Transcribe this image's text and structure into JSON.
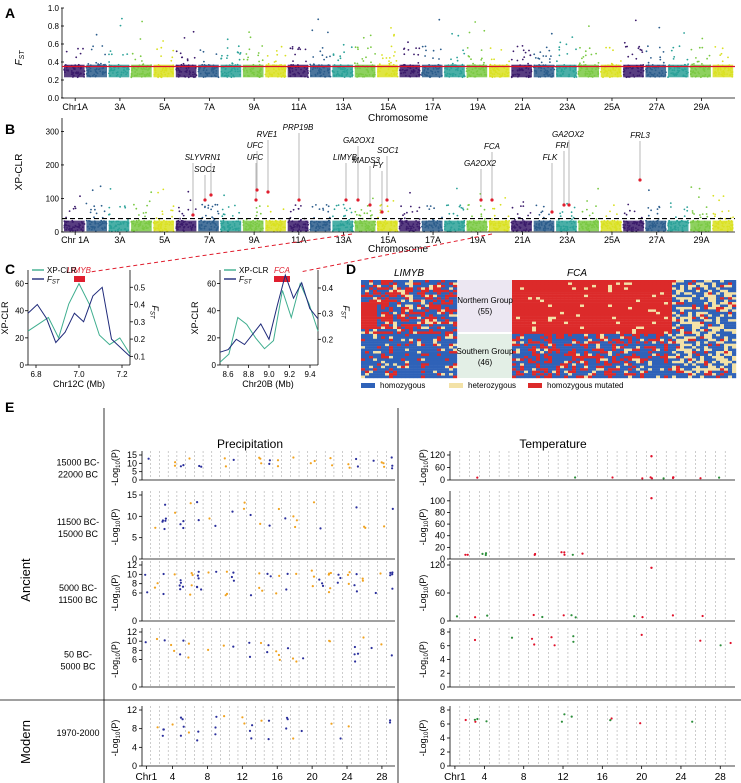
{
  "panels": {
    "A": {
      "letter": "A",
      "ylabel": "F",
      "ylabel_sub": "ST",
      "xlabel": "Chromosome",
      "yticks": [
        "0.0",
        "0.2",
        "0.4",
        "0.6",
        "0.8",
        "1.0"
      ],
      "xticks": [
        "Chr1A",
        "3A",
        "5A",
        "7A",
        "9A",
        "11A",
        "13A",
        "15A",
        "17A",
        "19A",
        "21A",
        "23A",
        "25A",
        "27A",
        "29A"
      ],
      "threshold": 0.35,
      "ylim": [
        0,
        1.0
      ]
    },
    "B": {
      "letter": "B",
      "ylabel": "XP-CLR",
      "xlabel": "Chromosome",
      "yticks": [
        "0",
        "100",
        "200",
        "300"
      ],
      "xticks": [
        "Chr  1A",
        "3A",
        "5A",
        "7A",
        "9A",
        "11A",
        "13A",
        "15A",
        "17A",
        "19A",
        "21A",
        "23A",
        "25A",
        "27A",
        "29A"
      ],
      "threshold": 40,
      "ylim": [
        0,
        340
      ],
      "genes": [
        "SLY",
        "SOC1",
        "VRN1",
        "UFC",
        "UFC",
        "RVE1",
        "PRP19B",
        "LIMYB",
        "GA2OX1",
        "SOC1",
        "MADS3",
        "FY",
        "FCA",
        "GA2OX2",
        "GA2OX2",
        "FLK",
        "FRI",
        "FRL3"
      ]
    },
    "C": {
      "letter": "C",
      "left": {
        "legend": [
          "XP-CLR",
          "F"
        ],
        "legend_sub": "ST",
        "gene": "LIMYB",
        "ylabel_left": "XP-CLR",
        "ylabel_right": "F",
        "ylabel_right_sub": "ST",
        "xlabel": "Chr12C (Mb)",
        "yticks_left": [
          "0",
          "20",
          "40",
          "60"
        ],
        "yticks_right": [
          "0.1",
          "0.2",
          "0.3",
          "0.4",
          "0.5"
        ],
        "xticks": [
          "6.8",
          "7.0",
          "7.2"
        ]
      },
      "right": {
        "legend": [
          "XP-CLR",
          "F"
        ],
        "legend_sub": "ST",
        "gene": "FCA",
        "ylabel_left": "XP-CLR",
        "ylabel_right": "F",
        "ylabel_right_sub": "ST",
        "xlabel": "Chr20B (Mb)",
        "yticks_left": [
          "0",
          "20",
          "40",
          "60"
        ],
        "yticks_right": [
          "0.2",
          "0.3",
          "0.4"
        ],
        "xticks": [
          "8.6",
          "8.8",
          "9.0",
          "9.2",
          "9.4"
        ]
      }
    },
    "D": {
      "letter": "D",
      "gene_left": "LIMYB",
      "gene_right": "FCA",
      "north_label": "Northern Group",
      "north_n": "(55)",
      "south_label": "Southern Group",
      "south_n": "(46)",
      "legend": [
        {
          "label": "homozygous",
          "color": "#2f62b8"
        },
        {
          "label": "heterozygous",
          "color": "#f3e2a7"
        },
        {
          "label": "homozygous mutated",
          "color": "#dc2a2a"
        }
      ]
    },
    "E": {
      "letter": "E",
      "col_headers": [
        "Precipitation",
        "Temperature"
      ],
      "group_ancient": "Ancient",
      "group_modern": "Modern",
      "ylabel": "-Log",
      "ylabel_sub": "10",
      "ylabel_tail": "(P)",
      "rows": [
        {
          "label1": "15000 BC-",
          "label2": "22000 BC",
          "precip_ticks": [
            "0",
            "5",
            "10",
            "15"
          ],
          "temp_ticks": [
            "0",
            "60",
            "120"
          ]
        },
        {
          "label1": "11500 BC-",
          "label2": "15000 BC",
          "precip_ticks": [
            "0",
            "5",
            "10",
            "15"
          ],
          "temp_ticks": [
            "0",
            "20",
            "40",
            "60",
            "80",
            "100"
          ]
        },
        {
          "label1": "5000 BC-",
          "label2": "11500 BC",
          "precip_ticks": [
            "0",
            "6",
            "8",
            "10",
            "12"
          ],
          "temp_ticks": [
            "0",
            "60",
            "120"
          ]
        },
        {
          "label1": "50 BC-",
          "label2": "5000 BC",
          "precip_ticks": [
            "0",
            "6",
            "8",
            "10",
            "12"
          ],
          "temp_ticks": [
            "0",
            "2",
            "4",
            "6",
            "8"
          ]
        },
        {
          "label1": "1970-2000",
          "label2": "",
          "precip_ticks": [
            "0",
            "4",
            "8",
            "12"
          ],
          "temp_ticks": [
            "0",
            "2",
            "4",
            "6",
            "8"
          ]
        }
      ],
      "xticks": [
        "Chr1",
        "4",
        "8",
        "12",
        "16",
        "20",
        "24",
        "28"
      ]
    }
  },
  "colors": {
    "palette": [
      "#3b1b6b",
      "#2c5d8c",
      "#2aa198",
      "#7ac943",
      "#d9e021"
    ],
    "threshold": "#e0102a",
    "xpclr_line": "#3fae8f",
    "fst_line": "#1f2a7a",
    "gene_bar": "#e01e2e",
    "north_bg": "#ece7f2",
    "south_bg": "#e3efe6"
  }
}
